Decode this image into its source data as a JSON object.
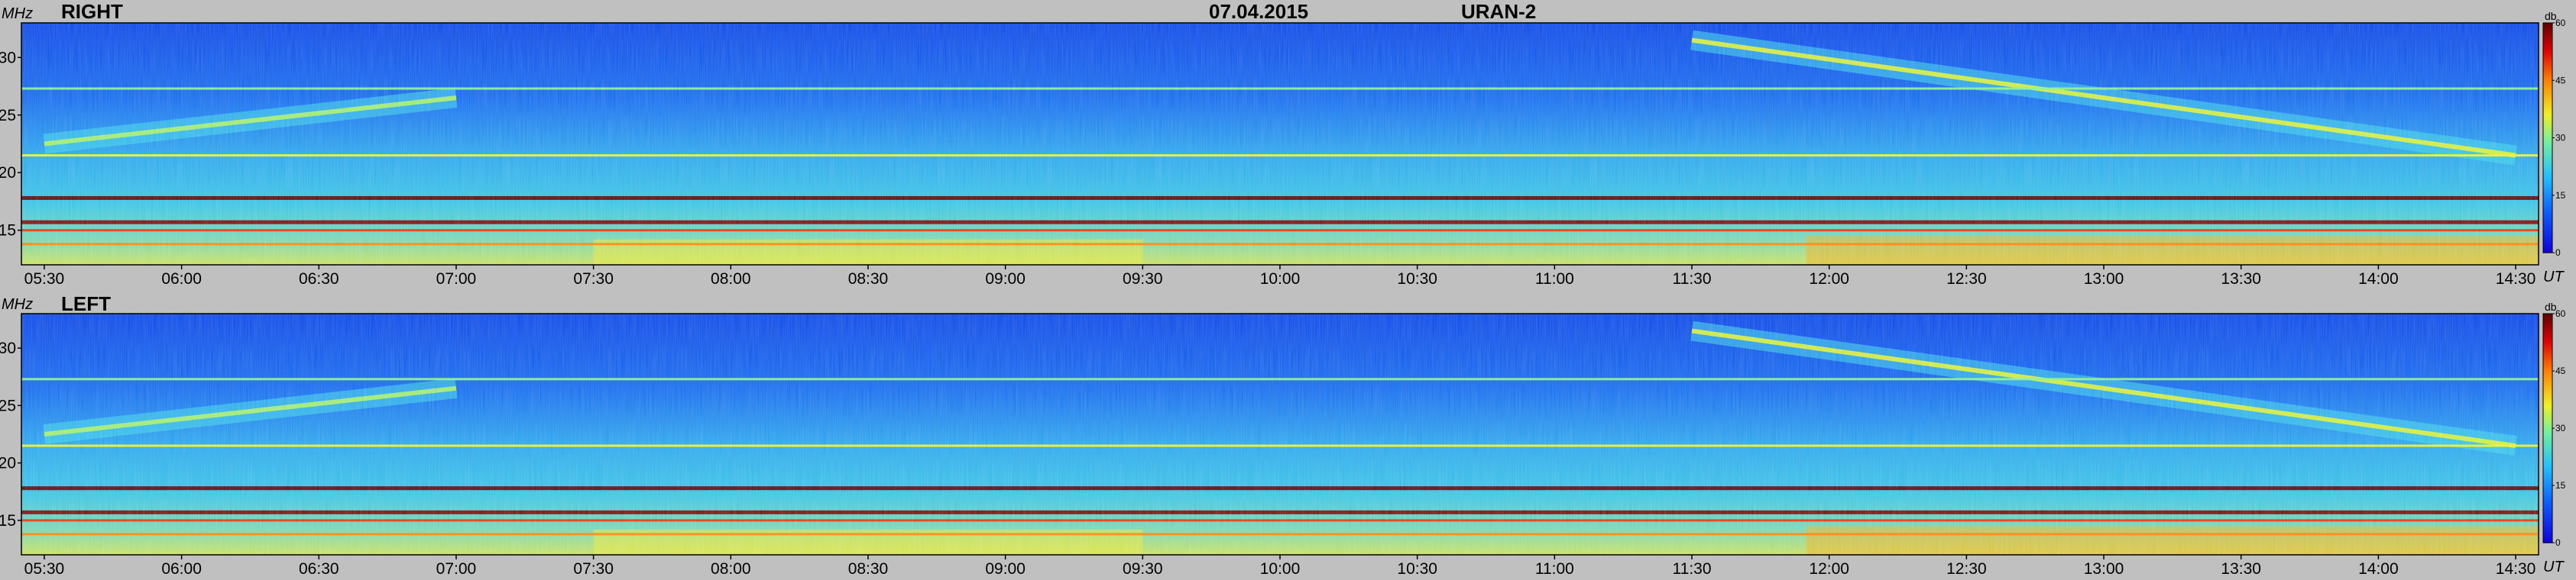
{
  "header": {
    "date": "07.04.2015",
    "instrument": "URAN-2"
  },
  "chart_data": [
    {
      "type": "heatmap",
      "title": "RIGHT",
      "ylabel": "MHz",
      "xlabel": "UT",
      "colorbar_label": "db",
      "x_ticks": [
        "05:30",
        "06:00",
        "06:30",
        "07:00",
        "07:30",
        "08:00",
        "08:30",
        "09:00",
        "09:30",
        "10:00",
        "10:30",
        "11:00",
        "11:30",
        "12:00",
        "12:30",
        "13:00",
        "13:30",
        "14:00",
        "14:30"
      ],
      "x_range": [
        "05:25",
        "14:35"
      ],
      "y_ticks": [
        15,
        20,
        25,
        30
      ],
      "ylim": [
        12,
        33
      ],
      "colorbar_ticks": [
        0,
        15,
        30,
        45,
        60
      ],
      "zlim": [
        0,
        60
      ],
      "bands": [
        {
          "freq": 17.8,
          "level": 60
        },
        {
          "freq": 15.7,
          "level": 58
        },
        {
          "freq": 15.0,
          "level": 50
        },
        {
          "freq": 13.8,
          "level": 45
        },
        {
          "freq": 21.5,
          "level": 36
        },
        {
          "freq": 27.3,
          "level": 30
        }
      ],
      "drift_features": [
        {
          "start": [
            "05:30",
            22.5
          ],
          "end": [
            "07:00",
            26.5
          ],
          "level": 32
        },
        {
          "start": [
            "11:30",
            31.5
          ],
          "end": [
            "14:30",
            21.5
          ],
          "level": 35
        }
      ]
    },
    {
      "type": "heatmap",
      "title": "LEFT",
      "ylabel": "MHz",
      "xlabel": "UT",
      "colorbar_label": "db",
      "x_ticks": [
        "05:30",
        "06:00",
        "06:30",
        "07:00",
        "07:30",
        "08:00",
        "08:30",
        "09:00",
        "09:30",
        "10:00",
        "10:30",
        "11:00",
        "11:30",
        "12:00",
        "12:30",
        "13:00",
        "13:30",
        "14:00",
        "14:30"
      ],
      "x_range": [
        "05:25",
        "14:35"
      ],
      "y_ticks": [
        15,
        20,
        25,
        30
      ],
      "ylim": [
        12,
        33
      ],
      "colorbar_ticks": [
        0,
        15,
        30,
        45,
        60
      ],
      "zlim": [
        0,
        60
      ],
      "bands": [
        {
          "freq": 17.8,
          "level": 60
        },
        {
          "freq": 15.7,
          "level": 58
        },
        {
          "freq": 15.0,
          "level": 50
        },
        {
          "freq": 13.8,
          "level": 45
        },
        {
          "freq": 21.5,
          "level": 36
        },
        {
          "freq": 27.3,
          "level": 30
        }
      ],
      "drift_features": [
        {
          "start": [
            "05:30",
            22.5
          ],
          "end": [
            "07:00",
            26.5
          ],
          "level": 32
        },
        {
          "start": [
            "11:30",
            31.5
          ],
          "end": [
            "14:30",
            21.5
          ],
          "level": 35
        }
      ]
    }
  ],
  "colors": {
    "background": "#c0c0c0",
    "low": "#0a3fe0",
    "mid": "#33c7e6",
    "high": "#e8e82a",
    "max": "#7a0000"
  }
}
